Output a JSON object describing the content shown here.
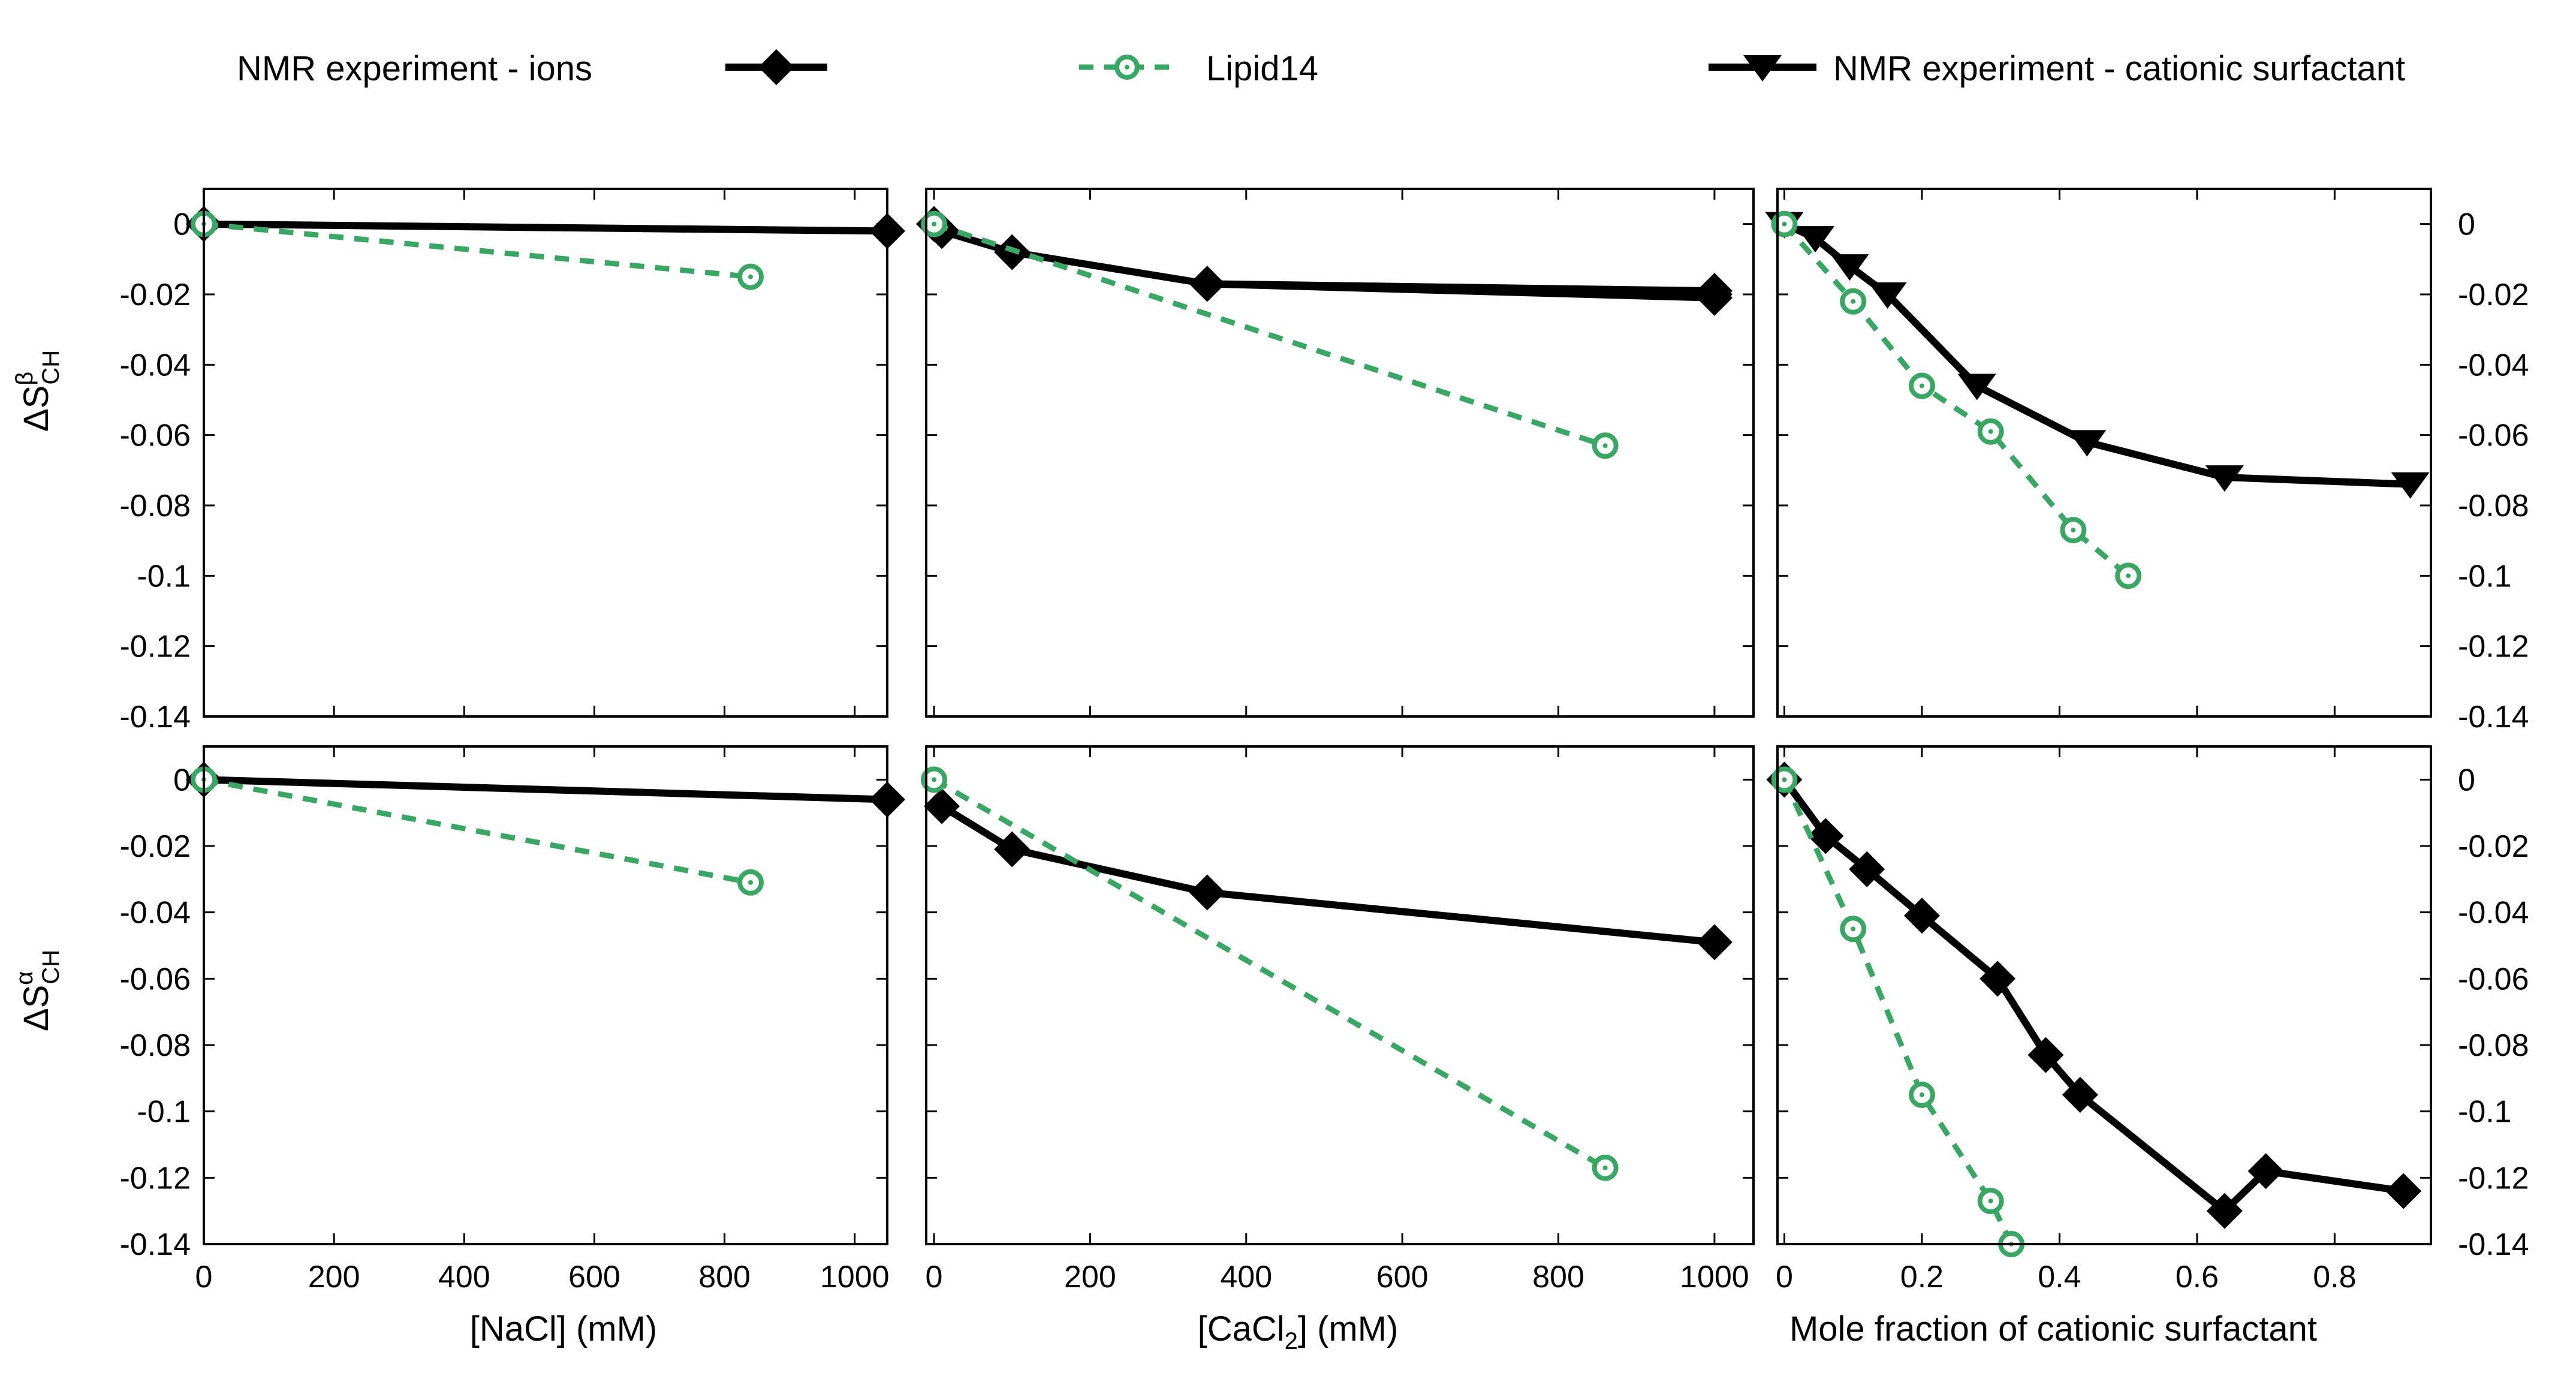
{
  "colors": {
    "experiment": "#000000",
    "lipid14": "#3aa663"
  },
  "legend": [
    {
      "label": "NMR experiment - ions",
      "marker": "diamond",
      "color": "#000000",
      "dash": false
    },
    {
      "label": "Lipid14",
      "marker": "circle-dot",
      "color": "#3aa663",
      "dash": true
    },
    {
      "label": "NMR experiment - cationic surfactant",
      "marker": "triangle-down",
      "color": "#000000",
      "dash": false
    }
  ],
  "axes": {
    "ylabel_top": {
      "base": "ΔS",
      "sup": "β",
      "sub": "CH"
    },
    "ylabel_bottom": {
      "base": "ΔS",
      "sup": "α",
      "sub": "CH"
    },
    "xlabel_nacl": "[NaCl] (mM)",
    "xlabel_cacl2": {
      "prefix": "[CaCl",
      "sub": "2",
      "suffix": "] (mM)"
    },
    "xlabel_surf": "Mole fraction of cationic surfactant",
    "yticks": [
      0,
      -0.02,
      -0.04,
      -0.06,
      -0.08,
      -0.1,
      -0.12,
      -0.14
    ],
    "ytick_labels": [
      "0",
      "-0.02",
      "-0.04",
      "-0.06",
      "-0.08",
      "-0.1",
      "-0.12",
      "-0.14"
    ],
    "xticks_nacl": [
      "0",
      "200",
      "400",
      "600",
      "800",
      "1000"
    ],
    "xticks_cacl2": [
      "0",
      "200",
      "400",
      "600",
      "800",
      "1000"
    ],
    "xticks_surf": [
      "0",
      "0.2",
      "0.4",
      "0.6",
      "0.8"
    ]
  },
  "chart_data": [
    {
      "type": "line",
      "panel": "top-left",
      "xlim": [
        0,
        1050
      ],
      "ylim": [
        -0.14,
        0.01
      ],
      "series": [
        {
          "name": "NMR experiment - ions",
          "marker": "diamond",
          "x": [
            0,
            1050
          ],
          "y": [
            0,
            -0.002
          ]
        },
        {
          "name": "Lipid14",
          "marker": "circle-dot",
          "x": [
            0,
            840
          ],
          "y": [
            0,
            -0.015
          ]
        }
      ]
    },
    {
      "type": "line",
      "panel": "top-middle",
      "xlim": [
        -10,
        1050
      ],
      "ylim": [
        -0.14,
        0.01
      ],
      "series": [
        {
          "name": "NMR experiment - ions",
          "marker": "diamond",
          "x": [
            0,
            10,
            100,
            350,
            1000
          ],
          "y": [
            0,
            -0.002,
            -0.008,
            -0.017,
            -0.02
          ]
        },
        {
          "name": "NMR experiment - ions",
          "marker": "diamond",
          "x": [
            350,
            1000
          ],
          "y": [
            -0.017,
            -0.019
          ]
        },
        {
          "name": "NMR experiment - ions",
          "marker": "diamond",
          "x": [
            350,
            1000
          ],
          "y": [
            -0.017,
            -0.021
          ]
        },
        {
          "name": "Lipid14",
          "marker": "circle-dot",
          "x": [
            0,
            860
          ],
          "y": [
            0,
            -0.063
          ]
        }
      ]
    },
    {
      "type": "line",
      "panel": "top-right",
      "xlim": [
        -0.01,
        0.94
      ],
      "ylim": [
        -0.14,
        0.01
      ],
      "series": [
        {
          "name": "NMR experiment - cationic surfactant",
          "marker": "triangle-down",
          "x": [
            0,
            0.045,
            0.095,
            0.15,
            0.28,
            0.44,
            0.64,
            0.91
          ],
          "y": [
            0,
            -0.004,
            -0.012,
            -0.02,
            -0.046,
            -0.062,
            -0.072,
            -0.074
          ]
        },
        {
          "name": "Lipid14",
          "marker": "circle-dot",
          "x": [
            0,
            0.1,
            0.2,
            0.3,
            0.42,
            0.5
          ],
          "y": [
            0,
            -0.022,
            -0.046,
            -0.059,
            -0.087,
            -0.1
          ]
        }
      ]
    },
    {
      "type": "line",
      "panel": "bottom-left",
      "xlim": [
        0,
        1050
      ],
      "ylim": [
        -0.14,
        0.01
      ],
      "series": [
        {
          "name": "NMR experiment - ions",
          "marker": "diamond",
          "x": [
            0,
            1050
          ],
          "y": [
            0,
            -0.006
          ]
        },
        {
          "name": "Lipid14",
          "marker": "circle-dot",
          "x": [
            0,
            840
          ],
          "y": [
            0,
            -0.031
          ]
        }
      ]
    },
    {
      "type": "line",
      "panel": "bottom-middle",
      "xlim": [
        -10,
        1050
      ],
      "ylim": [
        -0.14,
        0.01
      ],
      "series": [
        {
          "name": "NMR experiment - ions",
          "marker": "diamond",
          "x": [
            10,
            100,
            350,
            1000
          ],
          "y": [
            -0.008,
            -0.021,
            -0.034,
            -0.049
          ]
        },
        {
          "name": "Lipid14",
          "marker": "circle-dot",
          "x": [
            0,
            860
          ],
          "y": [
            0,
            -0.117
          ]
        }
      ]
    },
    {
      "type": "line",
      "panel": "bottom-right",
      "xlim": [
        -0.01,
        0.94
      ],
      "ylim": [
        -0.14,
        0.01
      ],
      "series": [
        {
          "name": "NMR experiment - ions",
          "marker": "diamond",
          "x": [
            0,
            0.06,
            0.12,
            0.2,
            0.31,
            0.38,
            0.43,
            0.64,
            0.7,
            0.9
          ],
          "y": [
            0,
            -0.017,
            -0.027,
            -0.041,
            -0.06,
            -0.083,
            -0.095,
            -0.13,
            -0.118,
            -0.124
          ]
        },
        {
          "name": "Lipid14",
          "marker": "circle-dot",
          "x": [
            0,
            0.1,
            0.2,
            0.3,
            0.33
          ],
          "y": [
            0,
            -0.045,
            -0.095,
            -0.127,
            -0.14
          ]
        }
      ]
    }
  ]
}
